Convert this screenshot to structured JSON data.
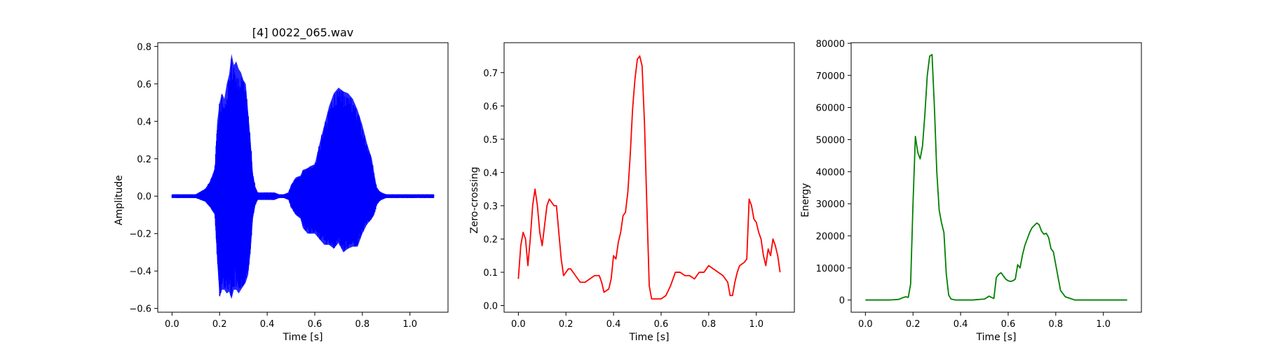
{
  "chart_data": [
    {
      "id": "waveform",
      "type": "line",
      "title": "[4] 0022_065.wav",
      "xlabel": "Time [s]",
      "ylabel": "Amplitude",
      "xlim": [
        -0.06,
        1.16
      ],
      "ylim": [
        -0.62,
        0.82
      ],
      "xticks": [
        0.0,
        0.2,
        0.4,
        0.6,
        0.8,
        1.0
      ],
      "xtick_labels": [
        "0.0",
        "0.2",
        "0.4",
        "0.6",
        "0.8",
        "1.0"
      ],
      "yticks": [
        -0.6,
        -0.4,
        -0.2,
        0.0,
        0.2,
        0.4,
        0.6,
        0.8
      ],
      "ytick_labels": [
        "−0.6",
        "−0.4",
        "−0.2",
        "0.0",
        "0.2",
        "0.4",
        "0.6",
        "0.8"
      ],
      "color": "#0000ff",
      "grid": false,
      "series": [
        {
          "kind": "envelope",
          "x": [
            0.0,
            0.1,
            0.14,
            0.16,
            0.18,
            0.19,
            0.2,
            0.21,
            0.22,
            0.23,
            0.24,
            0.25,
            0.26,
            0.27,
            0.28,
            0.29,
            0.3,
            0.31,
            0.32,
            0.33,
            0.34,
            0.35,
            0.36,
            0.38,
            0.4,
            0.43,
            0.45,
            0.47,
            0.49,
            0.5,
            0.52,
            0.54,
            0.55,
            0.57,
            0.58,
            0.6,
            0.62,
            0.64,
            0.66,
            0.68,
            0.7,
            0.72,
            0.74,
            0.76,
            0.78,
            0.8,
            0.82,
            0.84,
            0.85,
            0.86,
            0.87,
            0.88,
            0.9,
            0.95,
            1.0,
            1.1
          ],
          "upper": [
            0.01,
            0.01,
            0.04,
            0.08,
            0.15,
            0.4,
            0.5,
            0.55,
            0.52,
            0.6,
            0.65,
            0.76,
            0.7,
            0.72,
            0.68,
            0.66,
            0.62,
            0.6,
            0.45,
            0.3,
            0.12,
            0.05,
            0.02,
            0.02,
            0.02,
            0.02,
            0.01,
            0.01,
            0.02,
            0.06,
            0.1,
            0.11,
            0.14,
            0.15,
            0.16,
            0.17,
            0.28,
            0.38,
            0.48,
            0.55,
            0.58,
            0.56,
            0.55,
            0.52,
            0.46,
            0.38,
            0.28,
            0.2,
            0.12,
            0.05,
            0.03,
            0.02,
            0.01,
            0.01,
            0.01,
            0.01
          ],
          "lower": [
            -0.01,
            -0.01,
            -0.03,
            -0.06,
            -0.1,
            -0.35,
            -0.54,
            -0.5,
            -0.5,
            -0.52,
            -0.51,
            -0.55,
            -0.5,
            -0.5,
            -0.52,
            -0.5,
            -0.48,
            -0.46,
            -0.42,
            -0.3,
            -0.12,
            -0.05,
            -0.02,
            -0.02,
            -0.02,
            -0.02,
            -0.01,
            -0.01,
            -0.02,
            -0.06,
            -0.1,
            -0.12,
            -0.17,
            -0.2,
            -0.2,
            -0.2,
            -0.23,
            -0.26,
            -0.26,
            -0.28,
            -0.25,
            -0.3,
            -0.28,
            -0.27,
            -0.27,
            -0.2,
            -0.15,
            -0.12,
            -0.1,
            -0.05,
            -0.03,
            -0.02,
            -0.01,
            -0.01,
            -0.01,
            -0.01
          ]
        }
      ]
    },
    {
      "id": "zero-crossing",
      "type": "line",
      "title": "",
      "xlabel": "Time [s]",
      "ylabel": "Zero-crossing",
      "xlim": [
        -0.06,
        1.16
      ],
      "ylim": [
        -0.02,
        0.79
      ],
      "xticks": [
        0.0,
        0.2,
        0.4,
        0.6,
        0.8,
        1.0
      ],
      "xtick_labels": [
        "0.0",
        "0.2",
        "0.4",
        "0.6",
        "0.8",
        "1.0"
      ],
      "yticks": [
        0.0,
        0.1,
        0.2,
        0.3,
        0.4,
        0.5,
        0.6,
        0.7
      ],
      "ytick_labels": [
        "0.0",
        "0.1",
        "0.2",
        "0.3",
        "0.4",
        "0.5",
        "0.6",
        "0.7"
      ],
      "color": "#ff0000",
      "grid": false,
      "series": [
        {
          "x": [
            0.0,
            0.01,
            0.02,
            0.03,
            0.04,
            0.05,
            0.06,
            0.07,
            0.08,
            0.09,
            0.1,
            0.11,
            0.12,
            0.13,
            0.14,
            0.15,
            0.16,
            0.17,
            0.18,
            0.19,
            0.2,
            0.21,
            0.22,
            0.23,
            0.24,
            0.25,
            0.26,
            0.28,
            0.3,
            0.32,
            0.34,
            0.35,
            0.36,
            0.38,
            0.39,
            0.4,
            0.41,
            0.42,
            0.43,
            0.44,
            0.45,
            0.46,
            0.47,
            0.48,
            0.49,
            0.5,
            0.51,
            0.52,
            0.53,
            0.54,
            0.55,
            0.56,
            0.57,
            0.6,
            0.62,
            0.64,
            0.66,
            0.68,
            0.7,
            0.72,
            0.74,
            0.76,
            0.78,
            0.8,
            0.82,
            0.84,
            0.86,
            0.88,
            0.89,
            0.9,
            0.91,
            0.92,
            0.93,
            0.95,
            0.96,
            0.97,
            0.98,
            0.99,
            1.0,
            1.01,
            1.02,
            1.03,
            1.04,
            1.05,
            1.06,
            1.07,
            1.08,
            1.09,
            1.1
          ],
          "y": [
            0.08,
            0.18,
            0.22,
            0.2,
            0.12,
            0.2,
            0.3,
            0.35,
            0.3,
            0.22,
            0.18,
            0.24,
            0.3,
            0.32,
            0.31,
            0.3,
            0.3,
            0.22,
            0.14,
            0.09,
            0.1,
            0.11,
            0.11,
            0.1,
            0.09,
            0.08,
            0.07,
            0.07,
            0.08,
            0.09,
            0.09,
            0.07,
            0.04,
            0.05,
            0.08,
            0.15,
            0.14,
            0.19,
            0.22,
            0.27,
            0.28,
            0.34,
            0.45,
            0.59,
            0.68,
            0.74,
            0.75,
            0.72,
            0.55,
            0.3,
            0.06,
            0.02,
            0.02,
            0.02,
            0.03,
            0.06,
            0.1,
            0.1,
            0.09,
            0.09,
            0.08,
            0.1,
            0.1,
            0.12,
            0.11,
            0.1,
            0.09,
            0.07,
            0.03,
            0.03,
            0.07,
            0.1,
            0.12,
            0.13,
            0.14,
            0.32,
            0.3,
            0.26,
            0.25,
            0.22,
            0.2,
            0.15,
            0.12,
            0.17,
            0.15,
            0.2,
            0.18,
            0.15,
            0.1
          ]
        }
      ]
    },
    {
      "id": "energy",
      "type": "line",
      "title": "",
      "xlabel": "Time [s]",
      "ylabel": "Energy",
      "xlim": [
        -0.06,
        1.16
      ],
      "ylim": [
        -3800,
        80200
      ],
      "xticks": [
        0.0,
        0.2,
        0.4,
        0.6,
        0.8,
        1.0
      ],
      "xtick_labels": [
        "0.0",
        "0.2",
        "0.4",
        "0.6",
        "0.8",
        "1.0"
      ],
      "yticks": [
        0,
        10000,
        20000,
        30000,
        40000,
        50000,
        60000,
        70000,
        80000
      ],
      "ytick_labels": [
        "0",
        "10000",
        "20000",
        "30000",
        "40000",
        "50000",
        "60000",
        "70000",
        "80000"
      ],
      "color": "#008000",
      "grid": false,
      "series": [
        {
          "x": [
            0.0,
            0.1,
            0.14,
            0.16,
            0.17,
            0.18,
            0.19,
            0.2,
            0.21,
            0.22,
            0.23,
            0.24,
            0.25,
            0.26,
            0.27,
            0.28,
            0.29,
            0.3,
            0.31,
            0.32,
            0.33,
            0.34,
            0.35,
            0.36,
            0.38,
            0.4,
            0.45,
            0.5,
            0.52,
            0.53,
            0.54,
            0.55,
            0.56,
            0.57,
            0.58,
            0.59,
            0.6,
            0.61,
            0.62,
            0.63,
            0.64,
            0.65,
            0.66,
            0.67,
            0.68,
            0.69,
            0.7,
            0.72,
            0.73,
            0.74,
            0.75,
            0.76,
            0.77,
            0.78,
            0.79,
            0.8,
            0.81,
            0.82,
            0.84,
            0.86,
            0.88,
            0.9,
            1.0,
            1.1
          ],
          "y": [
            0,
            0,
            200,
            800,
            1000,
            800,
            5000,
            30000,
            51000,
            46000,
            44000,
            48000,
            58000,
            70000,
            76000,
            76500,
            60000,
            40000,
            28000,
            24000,
            21000,
            8000,
            1500,
            300,
            0,
            0,
            0,
            300,
            1200,
            800,
            500,
            7000,
            8000,
            8500,
            7500,
            6500,
            6000,
            5800,
            6000,
            6500,
            11000,
            10000,
            14000,
            17000,
            19000,
            21000,
            22500,
            24000,
            23500,
            21500,
            20500,
            20800,
            19500,
            16000,
            15000,
            11000,
            7000,
            3000,
            1000,
            500,
            0,
            0,
            0,
            0
          ]
        }
      ]
    }
  ]
}
